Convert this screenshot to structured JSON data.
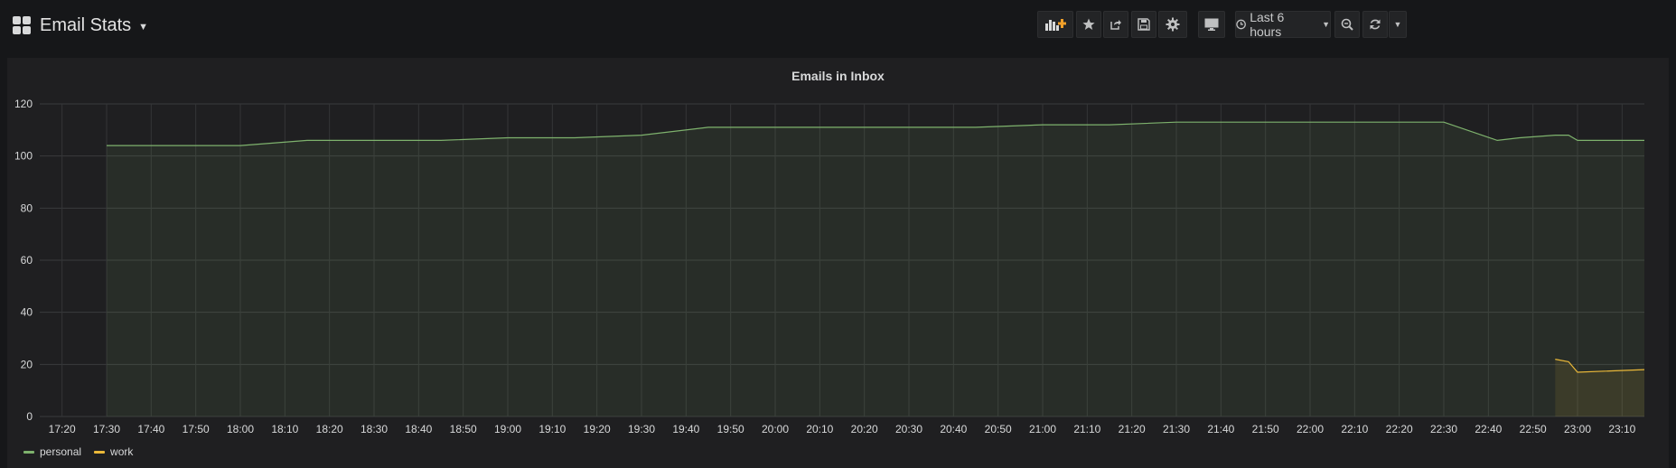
{
  "header": {
    "title": "Email Stats",
    "timepicker_label": "Last 6 hours",
    "buttons": [
      {
        "name": "add-panel-button",
        "icon": "add-panel-icon"
      },
      {
        "name": "star-button",
        "icon": "star-icon"
      },
      {
        "name": "share-button",
        "icon": "share-icon"
      },
      {
        "name": "save-button",
        "icon": "save-icon"
      },
      {
        "name": "settings-button",
        "icon": "gear-icon"
      },
      {
        "name": "tv-mode-button",
        "icon": "monitor-icon"
      },
      {
        "name": "zoom-out-button",
        "icon": "zoom-out-icon"
      },
      {
        "name": "refresh-button",
        "icon": "refresh-icon"
      },
      {
        "name": "refresh-interval-button",
        "icon": "chevron-down-icon"
      }
    ]
  },
  "panel": {
    "title": "Emails in Inbox"
  },
  "colors": {
    "personal": "#7eb26d",
    "work": "#eab839"
  },
  "chart_data": {
    "type": "line",
    "title": "Emails in Inbox",
    "ylim": [
      0,
      120
    ],
    "yticks": [
      0,
      20,
      40,
      60,
      80,
      100,
      120
    ],
    "xticks": [
      "17:20",
      "17:30",
      "17:40",
      "17:50",
      "18:00",
      "18:10",
      "18:20",
      "18:30",
      "18:40",
      "18:50",
      "19:00",
      "19:10",
      "19:20",
      "19:30",
      "19:40",
      "19:50",
      "20:00",
      "20:10",
      "20:20",
      "20:30",
      "20:40",
      "20:50",
      "21:00",
      "21:10",
      "21:20",
      "21:30",
      "21:40",
      "21:50",
      "22:00",
      "22:10",
      "22:20",
      "22:30",
      "22:40",
      "22:50",
      "23:00",
      "23:10"
    ],
    "xrange": [
      "17:15",
      "23:15"
    ],
    "grid": true,
    "legend_position": "bottom-left",
    "fill": true,
    "series": [
      {
        "name": "personal",
        "color": "#7eb26d",
        "x": [
          "17:30",
          "18:00",
          "18:15",
          "18:45",
          "19:00",
          "19:15",
          "19:30",
          "19:45",
          "20:00",
          "20:15",
          "20:30",
          "20:45",
          "21:00",
          "21:15",
          "21:30",
          "21:45",
          "22:00",
          "22:15",
          "22:30",
          "22:42",
          "22:47",
          "22:55",
          "22:58",
          "23:00",
          "23:15"
        ],
        "values": [
          104,
          104,
          106,
          106,
          107,
          107,
          108,
          111,
          111,
          111,
          111,
          111,
          112,
          112,
          113,
          113,
          113,
          113,
          113,
          106,
          107,
          108,
          108,
          106,
          106
        ]
      },
      {
        "name": "work",
        "color": "#eab839",
        "x": [
          "22:55",
          "22:58",
          "23:00",
          "23:15"
        ],
        "values": [
          22,
          21,
          17,
          18
        ]
      }
    ]
  }
}
